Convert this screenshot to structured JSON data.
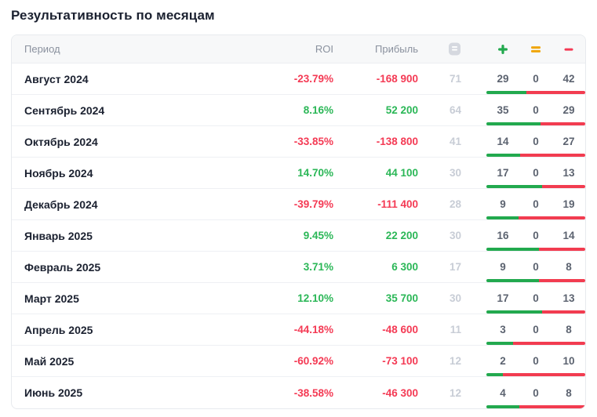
{
  "page_title": "Результативность по месяцам",
  "table": {
    "columns": {
      "period": "Период",
      "roi": "ROI",
      "profit": "Прибыль",
      "total_icon": "list-total-icon",
      "wins_icon": "plus-icon",
      "breakeven_icon": "equals-icon",
      "losses_icon": "minus-icon"
    },
    "rows": [
      {
        "period": "Август 2024",
        "roi": "-23.79%",
        "profit": "-168 900",
        "total": 71,
        "wins": 29,
        "breakeven": 0,
        "losses": 42
      },
      {
        "period": "Сентябрь 2024",
        "roi": "8.16%",
        "profit": "52 200",
        "total": 64,
        "wins": 35,
        "breakeven": 0,
        "losses": 29
      },
      {
        "period": "Октябрь 2024",
        "roi": "-33.85%",
        "profit": "-138 800",
        "total": 41,
        "wins": 14,
        "breakeven": 0,
        "losses": 27
      },
      {
        "period": "Ноябрь 2024",
        "roi": "14.70%",
        "profit": "44 100",
        "total": 30,
        "wins": 17,
        "breakeven": 0,
        "losses": 13
      },
      {
        "period": "Декабрь 2024",
        "roi": "-39.79%",
        "profit": "-111 400",
        "total": 28,
        "wins": 9,
        "breakeven": 0,
        "losses": 19
      },
      {
        "period": "Январь 2025",
        "roi": "9.45%",
        "profit": "22 200",
        "total": 30,
        "wins": 16,
        "breakeven": 0,
        "losses": 14
      },
      {
        "period": "Февраль 2025",
        "roi": "3.71%",
        "profit": "6 300",
        "total": 17,
        "wins": 9,
        "breakeven": 0,
        "losses": 8
      },
      {
        "period": "Март 2025",
        "roi": "12.10%",
        "profit": "35 700",
        "total": 30,
        "wins": 17,
        "breakeven": 0,
        "losses": 13
      },
      {
        "period": "Апрель 2025",
        "roi": "-44.18%",
        "profit": "-48 600",
        "total": 11,
        "wins": 3,
        "breakeven": 0,
        "losses": 8
      },
      {
        "period": "Май 2025",
        "roi": "-60.92%",
        "profit": "-73 100",
        "total": 12,
        "wins": 2,
        "breakeven": 0,
        "losses": 10
      },
      {
        "period": "Июнь 2025",
        "roi": "-38.58%",
        "profit": "-46 300",
        "total": 12,
        "wins": 4,
        "breakeven": 0,
        "losses": 8
      }
    ]
  },
  "colors": {
    "positive": "#2bb757",
    "negative": "#f43a54",
    "breakeven": "#f0a50a",
    "bar_positive": "#22a94e",
    "bar_negative": "#f23c50",
    "header_bg": "#f7f8f9",
    "muted_text": "#8a919e",
    "total_text": "#c8cdd6"
  }
}
